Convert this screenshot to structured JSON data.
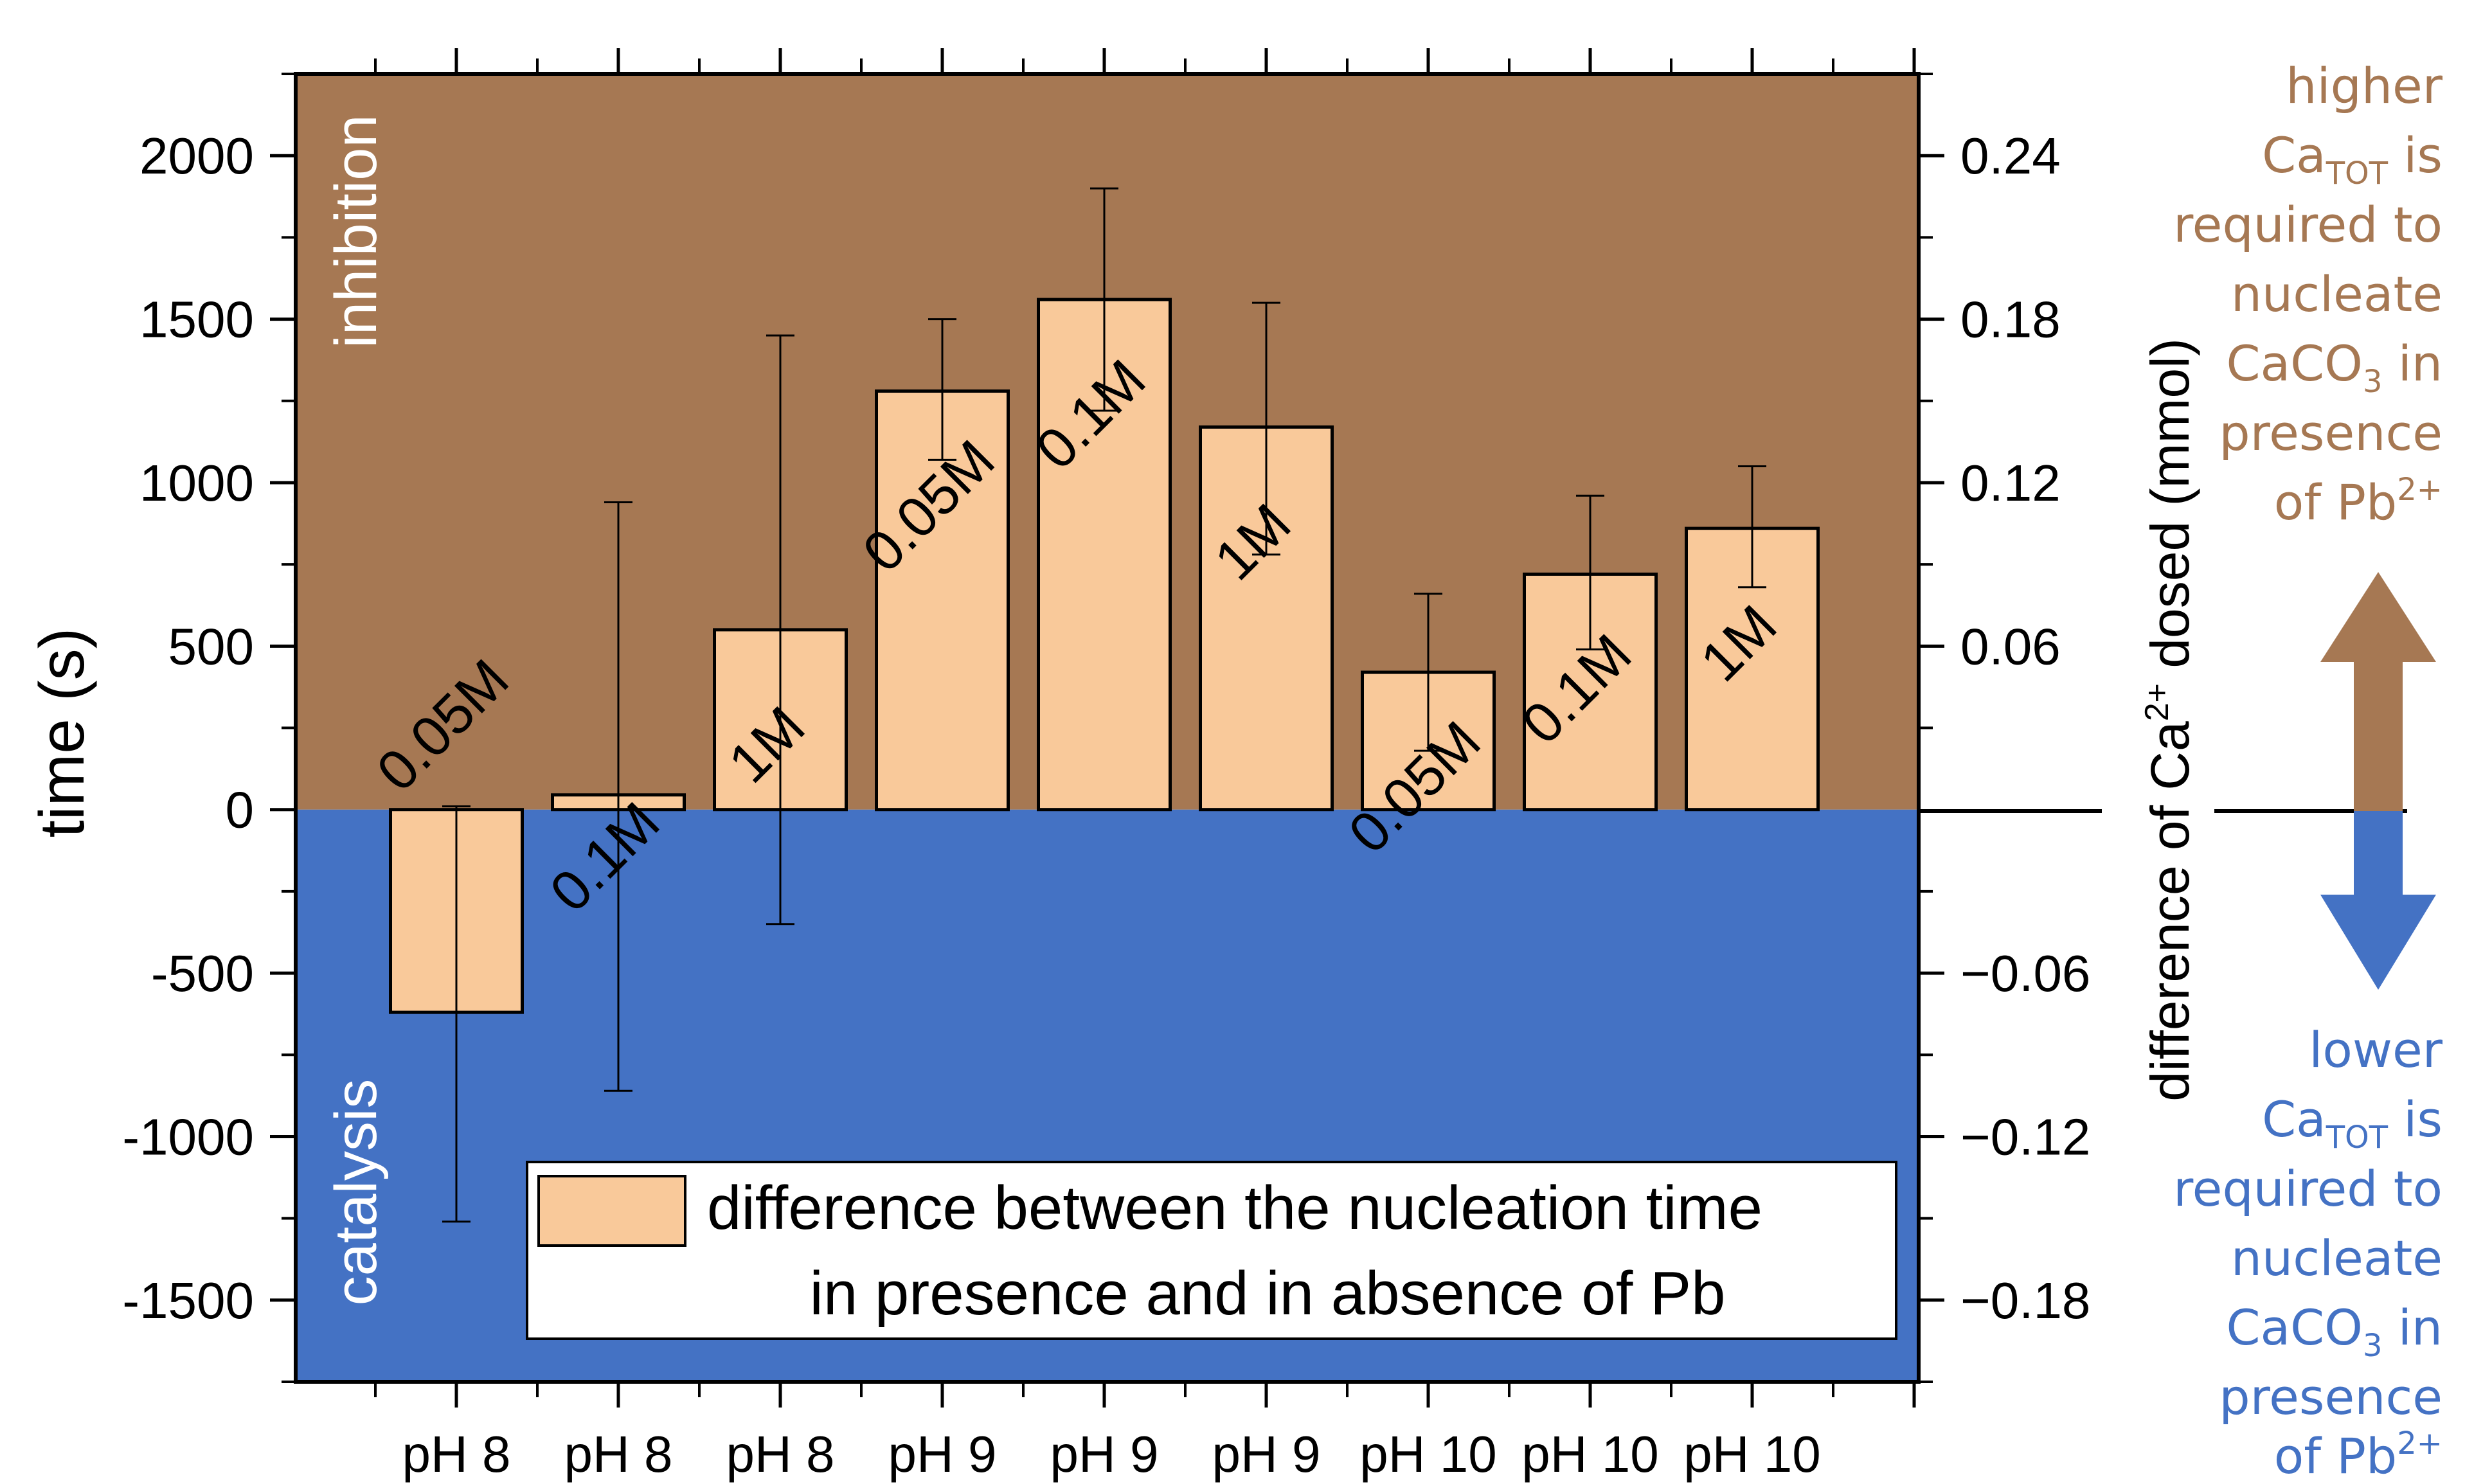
{
  "chart_data": {
    "type": "bar",
    "categories": [
      "pH 8",
      "pH 8",
      "pH 8",
      "pH 9",
      "pH 9",
      "pH 9",
      "pH 10",
      "pH 10",
      "pH 10"
    ],
    "series": [
      {
        "name": "difference between the nucleation time in presence and in absence of Pb",
        "values": [
          -620,
          45,
          550,
          1280,
          1560,
          1170,
          420,
          720,
          860
        ],
        "err_low": [
          -1260,
          -860,
          -350,
          1070,
          1220,
          780,
          180,
          490,
          680
        ],
        "err_high": [
          10,
          940,
          1450,
          1500,
          1900,
          1550,
          660,
          960,
          1050
        ],
        "bar_labels": [
          "0.05M",
          "0.1M",
          "1M",
          "0.05M",
          "0.1M",
          "1M",
          "0.05M",
          "0.1M",
          "1M"
        ]
      }
    ],
    "ylabel": "time (s)",
    "ylim": [
      -1750,
      2250
    ],
    "yticks": [
      "2000",
      "1500",
      "1000",
      "500",
      "0",
      "-500",
      "-1000",
      "-1500"
    ],
    "ytick_values": [
      2000,
      1500,
      1000,
      500,
      0,
      -500,
      -1000,
      -1500
    ],
    "y2label_pre": "difference of Ca",
    "y2label_sup": "2+",
    "y2label_post": " dosed (mmol)",
    "y2ticks": [
      "0.24",
      "0.18",
      "0.12",
      "0.06",
      "−0.06",
      "−0.12",
      "−0.18"
    ],
    "y2tick_values": [
      0.24,
      0.18,
      0.12,
      0.06,
      -0.06,
      -0.12,
      -0.18
    ],
    "y2_per_second": 0.00012,
    "legend_line1": "difference between the nucleation time",
    "legend_line2": "in presence and in absence of Pb",
    "legend_position": "bottom-right",
    "region_top_label": "inhibition",
    "region_bottom_label": "catalysis",
    "colors": {
      "inhibition": "#a67853",
      "catalysis": "#4472c4",
      "bar_fill": "#f9c99a",
      "upper_note": "#a67853",
      "lower_note": "#4472c4"
    },
    "upper_note": {
      "line1": "higher",
      "line2_main": "Ca",
      "line2_sub": "TOT",
      "line2_tail": " is",
      "line3": "required to",
      "line4": "nucleate",
      "line5_main": "CaCO",
      "line5_sub": "3",
      "line5_tail": " in",
      "line6": "presence",
      "line7_main": "of Pb",
      "line7_sup": "2+"
    },
    "lower_note": {
      "line1": "lower",
      "line2_main": "Ca",
      "line2_sub": "TOT",
      "line2_tail": " is",
      "line3": "required to",
      "line4": "nucleate",
      "line5_main": "CaCO",
      "line5_sub": "3",
      "line5_tail": " in",
      "line6": "presence",
      "line7_main": "of Pb",
      "line7_sup": "2+"
    }
  }
}
